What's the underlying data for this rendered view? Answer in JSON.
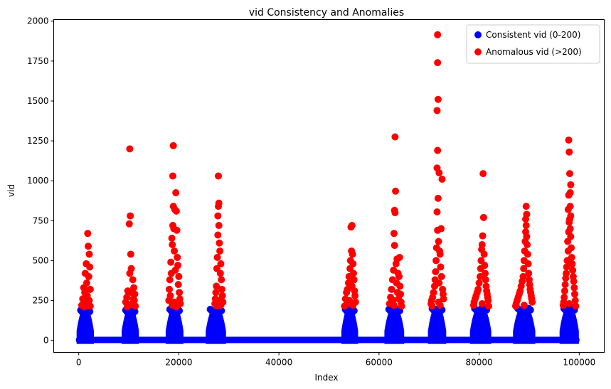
{
  "chart_data": {
    "type": "scatter",
    "title": "vid Consistency and Anomalies",
    "xlabel": "Index",
    "ylabel": "vid",
    "xlim": [
      -5000,
      105000
    ],
    "ylim": [
      -75,
      2010
    ],
    "xticks": [
      0,
      20000,
      40000,
      60000,
      80000,
      100000
    ],
    "yticks": [
      0,
      250,
      500,
      750,
      1000,
      1250,
      1500,
      1750,
      2000
    ],
    "grid": false,
    "legend_position": "top-right",
    "baseline": {
      "x_start": 0,
      "x_end": 99500,
      "y": 5
    },
    "clusters": [
      {
        "x_start": 0,
        "x_end": 2600,
        "max_consistent": 185
      },
      {
        "x_start": 9000,
        "x_end": 11600,
        "max_consistent": 185
      },
      {
        "x_start": 17800,
        "x_end": 20500,
        "max_consistent": 190
      },
      {
        "x_start": 25800,
        "x_end": 29000,
        "max_consistent": 190
      },
      {
        "x_start": 52900,
        "x_end": 55400,
        "max_consistent": 190
      },
      {
        "x_start": 61500,
        "x_end": 64600,
        "max_consistent": 190
      },
      {
        "x_start": 70200,
        "x_end": 73000,
        "max_consistent": 195
      },
      {
        "x_start": 78600,
        "x_end": 82000,
        "max_consistent": 195
      },
      {
        "x_start": 87200,
        "x_end": 90800,
        "max_consistent": 195
      },
      {
        "x_start": 96500,
        "x_end": 99500,
        "max_consistent": 195
      }
    ],
    "series": [
      {
        "name": "Consistent vid (0-200)",
        "color": "#0000ff"
      },
      {
        "name": "Anomalous vid (>200)",
        "color": "#ff0000",
        "points": [
          [
            1800,
            670
          ],
          [
            1900,
            590
          ],
          [
            2100,
            540
          ],
          [
            1500,
            480
          ],
          [
            2200,
            460
          ],
          [
            1300,
            420
          ],
          [
            2000,
            400
          ],
          [
            1600,
            360
          ],
          [
            1000,
            330
          ],
          [
            2300,
            320
          ],
          [
            1200,
            300
          ],
          [
            1700,
            280
          ],
          [
            800,
            260
          ],
          [
            2100,
            250
          ],
          [
            1400,
            240
          ],
          [
            1900,
            230
          ],
          [
            600,
            220
          ],
          [
            2300,
            215
          ],
          [
            1100,
            210
          ],
          [
            10200,
            1200
          ],
          [
            10300,
            780
          ],
          [
            10100,
            730
          ],
          [
            10400,
            540
          ],
          [
            10500,
            450
          ],
          [
            10200,
            420
          ],
          [
            10800,
            380
          ],
          [
            11000,
            330
          ],
          [
            9800,
            310
          ],
          [
            10600,
            300
          ],
          [
            11200,
            290
          ],
          [
            9600,
            270
          ],
          [
            10900,
            260
          ],
          [
            11100,
            250
          ],
          [
            9400,
            240
          ],
          [
            10700,
            230
          ],
          [
            9900,
            220
          ],
          [
            11300,
            215
          ],
          [
            9700,
            210
          ],
          [
            18900,
            1220
          ],
          [
            18800,
            1030
          ],
          [
            19400,
            925
          ],
          [
            18900,
            840
          ],
          [
            19200,
            820
          ],
          [
            19500,
            810
          ],
          [
            18800,
            720
          ],
          [
            19000,
            700
          ],
          [
            19600,
            690
          ],
          [
            18600,
            640
          ],
          [
            18700,
            600
          ],
          [
            19100,
            560
          ],
          [
            19700,
            520
          ],
          [
            18400,
            490
          ],
          [
            19800,
            470
          ],
          [
            19300,
            440
          ],
          [
            18500,
            420
          ],
          [
            20000,
            400
          ],
          [
            18200,
            380
          ],
          [
            19900,
            350
          ],
          [
            18100,
            320
          ],
          [
            20100,
            300
          ],
          [
            18300,
            280
          ],
          [
            20200,
            260
          ],
          [
            18000,
            250
          ],
          [
            19000,
            240
          ],
          [
            20300,
            230
          ],
          [
            18700,
            220
          ],
          [
            19500,
            210
          ],
          [
            27900,
            1030
          ],
          [
            28000,
            860
          ],
          [
            27900,
            840
          ],
          [
            27800,
            780
          ],
          [
            28000,
            720
          ],
          [
            27800,
            660
          ],
          [
            28100,
            610
          ],
          [
            28200,
            560
          ],
          [
            27700,
            520
          ],
          [
            28400,
            480
          ],
          [
            27600,
            450
          ],
          [
            28300,
            420
          ],
          [
            28500,
            380
          ],
          [
            27500,
            340
          ],
          [
            28600,
            320
          ],
          [
            27400,
            300
          ],
          [
            28700,
            280
          ],
          [
            27300,
            260
          ],
          [
            28000,
            250
          ],
          [
            28800,
            240
          ],
          [
            27200,
            230
          ],
          [
            28400,
            220
          ],
          [
            27600,
            215
          ],
          [
            54600,
            720
          ],
          [
            54400,
            710
          ],
          [
            54500,
            560
          ],
          [
            54700,
            540
          ],
          [
            54300,
            500
          ],
          [
            54800,
            480
          ],
          [
            54200,
            450
          ],
          [
            54900,
            420
          ],
          [
            54000,
            400
          ],
          [
            55000,
            380
          ],
          [
            53900,
            360
          ],
          [
            54600,
            340
          ],
          [
            53700,
            320
          ],
          [
            55100,
            310
          ],
          [
            53500,
            300
          ],
          [
            55200,
            280
          ],
          [
            53300,
            260
          ],
          [
            54100,
            250
          ],
          [
            55300,
            240
          ],
          [
            53600,
            230
          ],
          [
            54800,
            220
          ],
          [
            53100,
            215
          ],
          [
            63200,
            1275
          ],
          [
            63300,
            935
          ],
          [
            63100,
            815
          ],
          [
            63200,
            800
          ],
          [
            63000,
            670
          ],
          [
            63100,
            595
          ],
          [
            64100,
            520
          ],
          [
            63600,
            510
          ],
          [
            63400,
            480
          ],
          [
            62900,
            440
          ],
          [
            63800,
            420
          ],
          [
            64000,
            400
          ],
          [
            62700,
            380
          ],
          [
            63500,
            360
          ],
          [
            64200,
            340
          ],
          [
            62500,
            320
          ],
          [
            63700,
            300
          ],
          [
            64300,
            290
          ],
          [
            62300,
            270
          ],
          [
            63900,
            260
          ],
          [
            62800,
            250
          ],
          [
            64400,
            240
          ],
          [
            62100,
            230
          ],
          [
            63000,
            220
          ],
          [
            64500,
            215
          ],
          [
            71700,
            1915
          ],
          [
            71700,
            1740
          ],
          [
            71800,
            1510
          ],
          [
            71600,
            1440
          ],
          [
            71700,
            1190
          ],
          [
            71600,
            1080
          ],
          [
            72000,
            1050
          ],
          [
            72600,
            1010
          ],
          [
            71800,
            890
          ],
          [
            71600,
            805
          ],
          [
            72400,
            700
          ],
          [
            71700,
            690
          ],
          [
            71900,
            620
          ],
          [
            71500,
            580
          ],
          [
            72100,
            560
          ],
          [
            72200,
            540
          ],
          [
            71400,
            500
          ],
          [
            72300,
            460
          ],
          [
            71300,
            430
          ],
          [
            72500,
            400
          ],
          [
            71200,
            380
          ],
          [
            72000,
            360
          ],
          [
            71100,
            340
          ],
          [
            72700,
            320
          ],
          [
            70900,
            300
          ],
          [
            72800,
            290
          ],
          [
            70700,
            270
          ],
          [
            72900,
            260
          ],
          [
            70500,
            250
          ],
          [
            71900,
            240
          ],
          [
            70400,
            230
          ],
          [
            72200,
            220
          ],
          [
            70600,
            215
          ],
          [
            80800,
            1045
          ],
          [
            80900,
            770
          ],
          [
            80700,
            655
          ],
          [
            80600,
            600
          ],
          [
            80500,
            570
          ],
          [
            81000,
            540
          ],
          [
            80400,
            500
          ],
          [
            81100,
            470
          ],
          [
            80300,
            450
          ],
          [
            81200,
            420
          ],
          [
            80200,
            400
          ],
          [
            81300,
            380
          ],
          [
            80000,
            360
          ],
          [
            81400,
            340
          ],
          [
            79800,
            320
          ],
          [
            81500,
            310
          ],
          [
            79600,
            300
          ],
          [
            81600,
            290
          ],
          [
            79400,
            280
          ],
          [
            81700,
            270
          ],
          [
            79200,
            260
          ],
          [
            81800,
            250
          ],
          [
            79000,
            240
          ],
          [
            80600,
            230
          ],
          [
            78900,
            220
          ],
          [
            81900,
            215
          ],
          [
            89400,
            840
          ],
          [
            89500,
            790
          ],
          [
            89300,
            760
          ],
          [
            89400,
            720
          ],
          [
            89300,
            680
          ],
          [
            89500,
            650
          ],
          [
            89200,
            620
          ],
          [
            89600,
            600
          ],
          [
            89100,
            560
          ],
          [
            89700,
            540
          ],
          [
            89000,
            500
          ],
          [
            89800,
            480
          ],
          [
            88900,
            450
          ],
          [
            89900,
            420
          ],
          [
            88800,
            400
          ],
          [
            90000,
            380
          ],
          [
            88600,
            370
          ],
          [
            90100,
            350
          ],
          [
            88400,
            340
          ],
          [
            90200,
            320
          ],
          [
            88200,
            310
          ],
          [
            90300,
            300
          ],
          [
            88000,
            290
          ],
          [
            90400,
            280
          ],
          [
            87800,
            270
          ],
          [
            90500,
            260
          ],
          [
            87600,
            250
          ],
          [
            90600,
            240
          ],
          [
            87400,
            230
          ],
          [
            89000,
            220
          ],
          [
            87300,
            215
          ],
          [
            97900,
            1255
          ],
          [
            98000,
            1180
          ],
          [
            98100,
            1045
          ],
          [
            98300,
            975
          ],
          [
            98200,
            925
          ],
          [
            97900,
            910
          ],
          [
            98200,
            840
          ],
          [
            97800,
            820
          ],
          [
            98300,
            780
          ],
          [
            98100,
            760
          ],
          [
            98000,
            740
          ],
          [
            98200,
            700
          ],
          [
            97900,
            680
          ],
          [
            98300,
            650
          ],
          [
            97700,
            620
          ],
          [
            98400,
            580
          ],
          [
            97800,
            560
          ],
          [
            98500,
            520
          ],
          [
            97600,
            500
          ],
          [
            98600,
            480
          ],
          [
            97500,
            460
          ],
          [
            98700,
            440
          ],
          [
            97400,
            420
          ],
          [
            98800,
            400
          ],
          [
            97300,
            390
          ],
          [
            98900,
            370
          ],
          [
            97200,
            350
          ],
          [
            99000,
            330
          ],
          [
            97100,
            310
          ],
          [
            99100,
            290
          ],
          [
            97000,
            270
          ],
          [
            99200,
            250
          ],
          [
            96900,
            240
          ],
          [
            98000,
            230
          ],
          [
            96800,
            220
          ],
          [
            99300,
            215
          ]
        ]
      }
    ]
  }
}
